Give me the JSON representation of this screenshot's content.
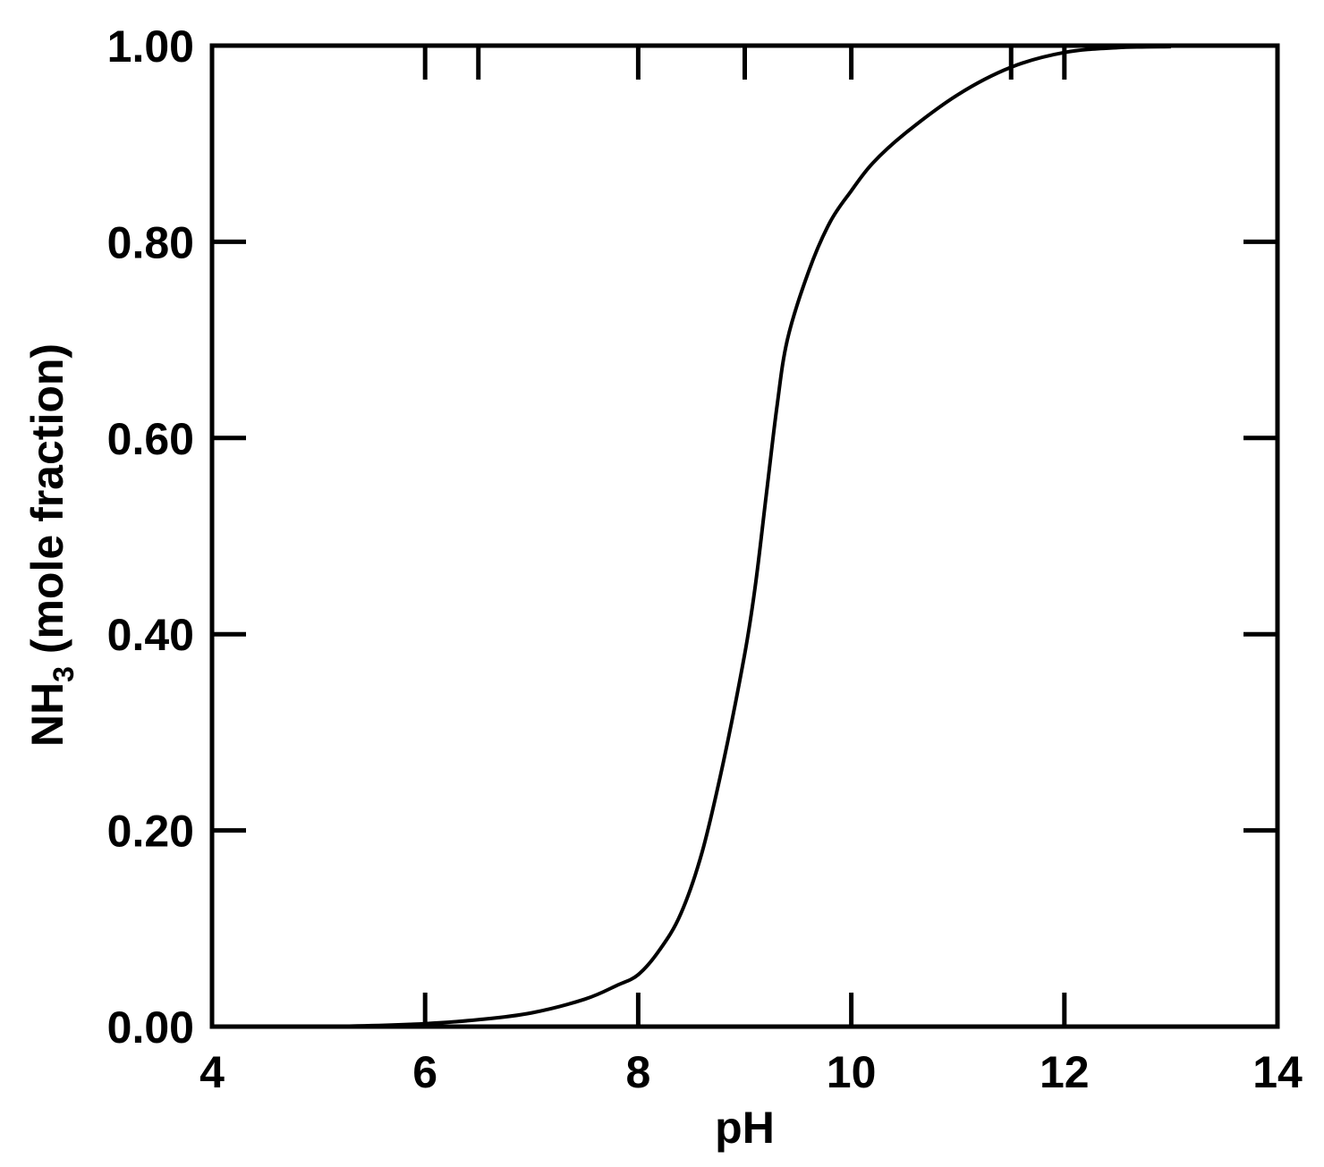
{
  "chart_data": {
    "type": "line",
    "title": "",
    "xlabel": "pH",
    "ylabel": {
      "main": "NH",
      "subscript": "3",
      "suffix": " (mole fraction)"
    },
    "xlim": [
      4,
      14
    ],
    "ylim": [
      0,
      1
    ],
    "x_ticks": [
      4,
      6,
      8,
      10,
      12,
      14
    ],
    "x_tick_labels": [
      "4",
      "6",
      "8",
      "10",
      "12",
      "14"
    ],
    "y_ticks": [
      0,
      0.2,
      0.4,
      0.6,
      0.8,
      1.0
    ],
    "y_tick_labels": [
      "0.00",
      "0.20",
      "0.40",
      "0.60",
      "0.80",
      "1.00"
    ],
    "x_minor_ticks": [
      6.5,
      9,
      11.5
    ],
    "grid": false,
    "legend": "none",
    "line_color": "#000000",
    "series": [
      {
        "x": [
          4.0,
          4.5,
          5.0,
          5.5,
          6.0,
          6.5,
          7.0,
          7.5,
          7.8,
          8.0,
          8.2,
          8.4,
          8.6,
          8.8,
          9.0,
          9.1,
          9.2,
          9.3,
          9.4,
          9.6,
          9.8,
          10.0,
          10.2,
          10.5,
          11.0,
          11.5,
          12.0,
          12.5,
          13.0
        ],
        "y": [
          0.0,
          0.0,
          0.0,
          0.001,
          0.003,
          0.007,
          0.014,
          0.028,
          0.042,
          0.053,
          0.078,
          0.115,
          0.178,
          0.27,
          0.38,
          0.45,
          0.54,
          0.63,
          0.7,
          0.77,
          0.82,
          0.852,
          0.88,
          0.91,
          0.95,
          0.978,
          0.993,
          0.998,
          0.999
        ]
      }
    ]
  }
}
